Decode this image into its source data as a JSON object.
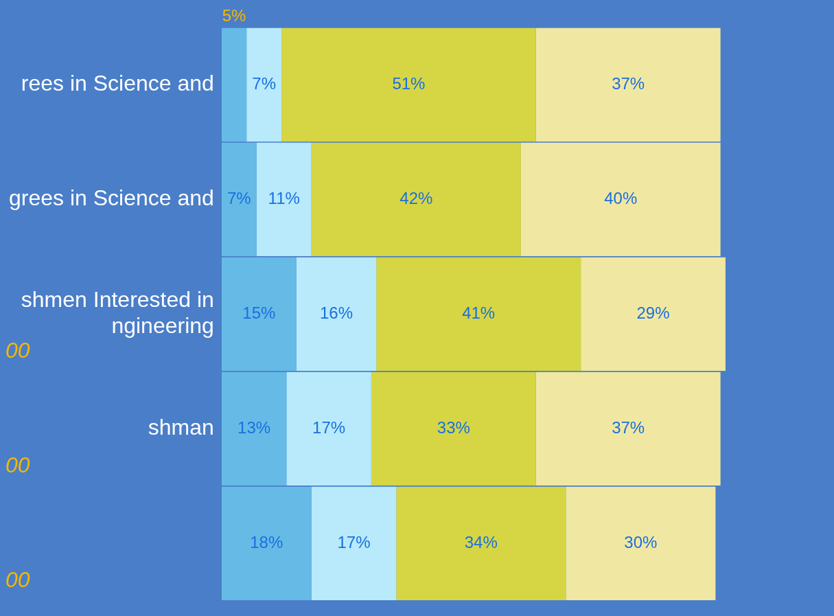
{
  "chart_data": {
    "type": "bar",
    "orientation": "horizontal",
    "stacked": true,
    "tick_labels": "y",
    "legend": false,
    "categories": [
      "rees in Science and",
      "grees in Science and",
      "shmen Interested in\nngineering",
      "shman",
      null
    ],
    "series": [
      {
        "color": "#66bbe6",
        "values": [
          5,
          7,
          15,
          13,
          18
        ],
        "value_labels": [
          "5%",
          "7%",
          "15%",
          "13%",
          "18%"
        ]
      },
      {
        "color": "#b8eafc",
        "values": [
          7,
          11,
          16,
          17,
          17
        ],
        "value_labels": [
          "7%",
          "11%",
          "16%",
          "17%",
          "17%"
        ]
      },
      {
        "color": "#d6d645",
        "values": [
          51,
          42,
          41,
          33,
          34
        ],
        "value_labels": [
          "51%",
          "42%",
          "41%",
          "33%",
          "34%"
        ]
      },
      {
        "color": "#f0e8a2",
        "values": [
          37,
          40,
          29,
          37,
          30
        ],
        "value_labels": [
          "37%",
          "40%",
          "29%",
          "37%",
          "30%"
        ]
      }
    ],
    "annotations": [
      "00",
      "00",
      "00"
    ]
  }
}
